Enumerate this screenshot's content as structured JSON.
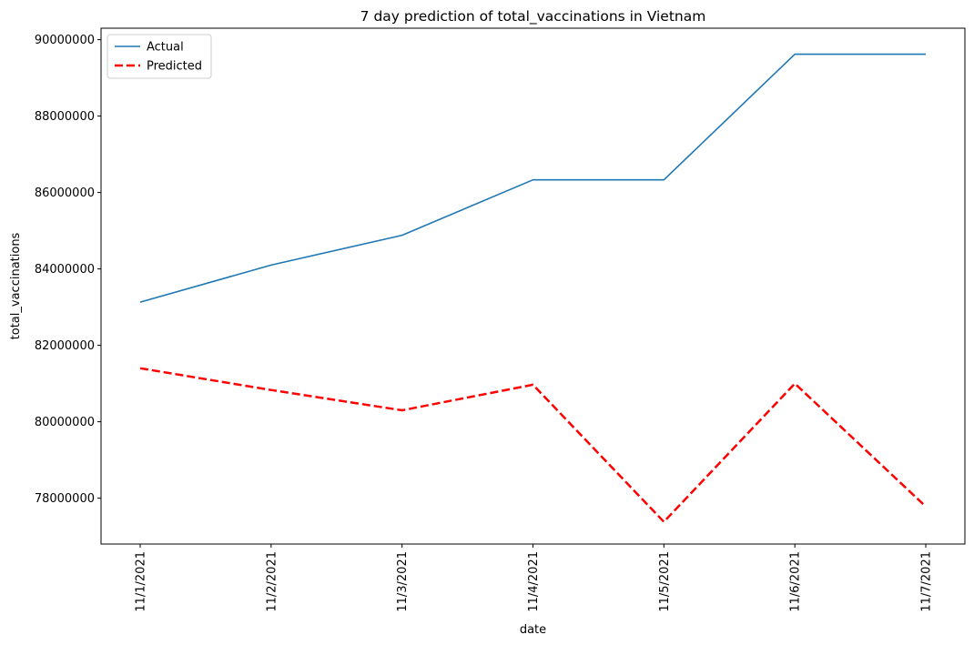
{
  "chart_data": {
    "type": "line",
    "title": "7 day prediction of total_vaccinations in Vietnam",
    "xlabel": "date",
    "ylabel": "total_vaccinations",
    "categories": [
      "11/1/2021",
      "11/2/2021",
      "11/3/2021",
      "11/4/2021",
      "11/5/2021",
      "11/6/2021",
      "11/7/2021"
    ],
    "ylim": [
      76800000,
      90300000
    ],
    "yticks": [
      78000000,
      80000000,
      82000000,
      84000000,
      86000000,
      88000000,
      90000000
    ],
    "ytick_labels": [
      "78000000",
      "80000000",
      "82000000",
      "84000000",
      "86000000",
      "88000000",
      "90000000"
    ],
    "grid": false,
    "legend": "top-left",
    "series": [
      {
        "name": "Actual",
        "color": "#1f77b4",
        "style": "solid",
        "values": [
          83130000,
          84100000,
          84880000,
          86330000,
          86330000,
          89620000,
          89620000
        ]
      },
      {
        "name": "Predicted",
        "color": "#ff0000",
        "style": "dashed",
        "values": [
          81400000,
          80830000,
          80300000,
          80970000,
          77380000,
          81000000,
          77780000
        ]
      }
    ]
  }
}
